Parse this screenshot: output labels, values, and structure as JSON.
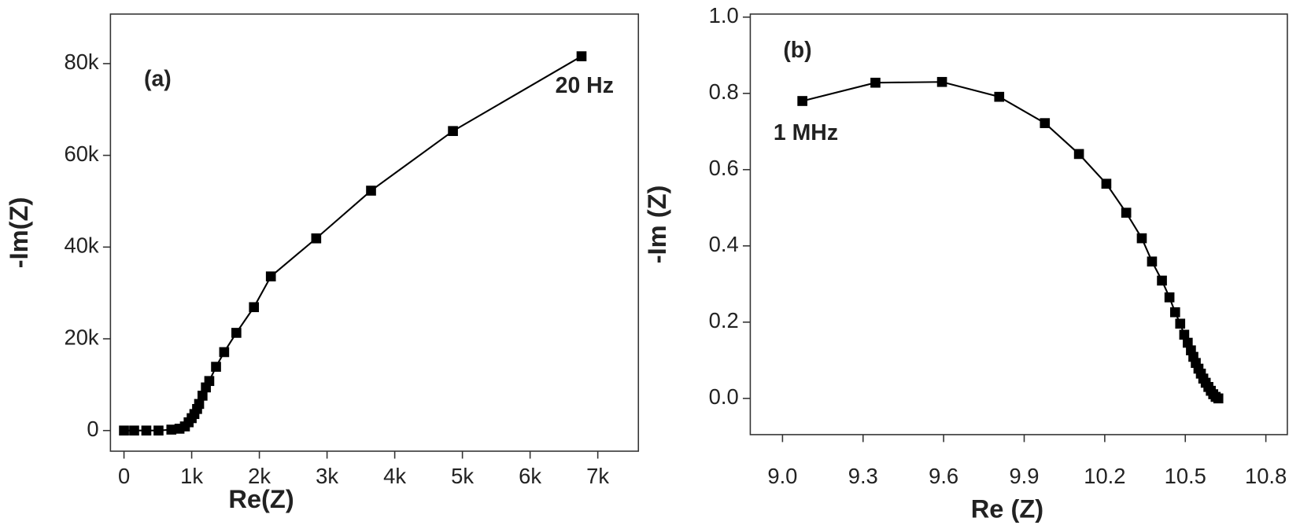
{
  "chart_data": [
    {
      "type": "line",
      "x_label": "Re(Z)",
      "y_label": "-Im(Z)",
      "annotations": [
        "(a)",
        "20 Hz"
      ],
      "x": [
        0,
        150,
        330,
        510,
        700,
        820,
        900,
        955,
        1000,
        1040,
        1080,
        1110,
        1160,
        1210,
        1260,
        1360,
        1480,
        1660,
        1920,
        2170,
        2840,
        3650,
        4860,
        6760
      ],
      "series": [
        {
          "color": "#000000",
          "values": [
            0,
            0,
            0,
            0,
            200,
            400,
            900,
            1800,
            2700,
            3600,
            4700,
            5800,
            7600,
            9400,
            10800,
            13900,
            17100,
            21300,
            26900,
            33600,
            41900,
            52300,
            65300,
            81600
          ]
        }
      ],
      "xlim": [
        -200,
        7600
      ],
      "xticks": [
        {
          "value": 0,
          "label": "0"
        },
        {
          "value": 1000,
          "label": "1k"
        },
        {
          "value": 2000,
          "label": "2k"
        },
        {
          "value": 3000,
          "label": "3k"
        },
        {
          "value": 4000,
          "label": "4k"
        },
        {
          "value": 5000,
          "label": "5k"
        },
        {
          "value": 6000,
          "label": "6k"
        },
        {
          "value": 7000,
          "label": "7k"
        }
      ],
      "ylim": [
        -4500,
        90800
      ],
      "yticks": [
        {
          "value": 0,
          "label": "0"
        },
        {
          "value": 20000,
          "label": "20k"
        },
        {
          "value": 40000,
          "label": "40k"
        },
        {
          "value": 60000,
          "label": "60k"
        },
        {
          "value": 80000,
          "label": "80k"
        }
      ]
    },
    {
      "type": "line",
      "x_label": "Re (Z)",
      "y_label": "-Im (Z)",
      "annotations": [
        "(b)",
        "1 MHz"
      ],
      "x": [
        9.074,
        9.346,
        9.594,
        9.807,
        9.977,
        10.104,
        10.206,
        10.28,
        10.338,
        10.376,
        10.413,
        10.441,
        10.462,
        10.481,
        10.496,
        10.509,
        10.521,
        10.53,
        10.539,
        10.549,
        10.558,
        10.567,
        10.576,
        10.586,
        10.595,
        10.604,
        10.613,
        10.623
      ],
      "series": [
        {
          "color": "#000000",
          "values": [
            0.78,
            0.828,
            0.83,
            0.791,
            0.722,
            0.641,
            0.563,
            0.487,
            0.42,
            0.359,
            0.309,
            0.265,
            0.226,
            0.196,
            0.167,
            0.146,
            0.126,
            0.109,
            0.093,
            0.078,
            0.065,
            0.052,
            0.041,
            0.03,
            0.02,
            0.011,
            0.004,
            0.0
          ]
        }
      ],
      "xlim": [
        8.88,
        10.88
      ],
      "xticks": [
        {
          "value": 9,
          "label": "9.0"
        },
        9.3,
        9.6,
        9.9,
        10.2,
        10.5,
        10.8
      ],
      "ylim": [
        -0.095,
        1.008
      ],
      "yticks": [
        {
          "value": 0,
          "label": "0.0"
        },
        0.2,
        0.4,
        0.6,
        0.8,
        {
          "value": 1,
          "label": "1.0"
        }
      ]
    }
  ]
}
